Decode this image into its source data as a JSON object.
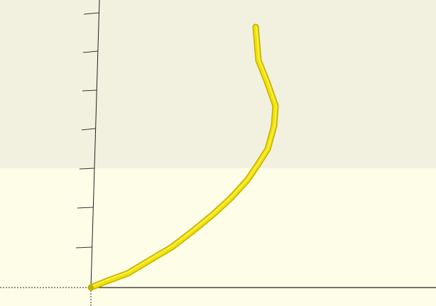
{
  "viewport": {
    "background_upper": "#f2f1e0",
    "background_lower": "#fdfde8",
    "axis_color": "#222222",
    "tick_color": "#333333",
    "model_color": "#f2e200",
    "model_edge_color": "#bfb000",
    "model_highlight_color": "#fff27a"
  }
}
